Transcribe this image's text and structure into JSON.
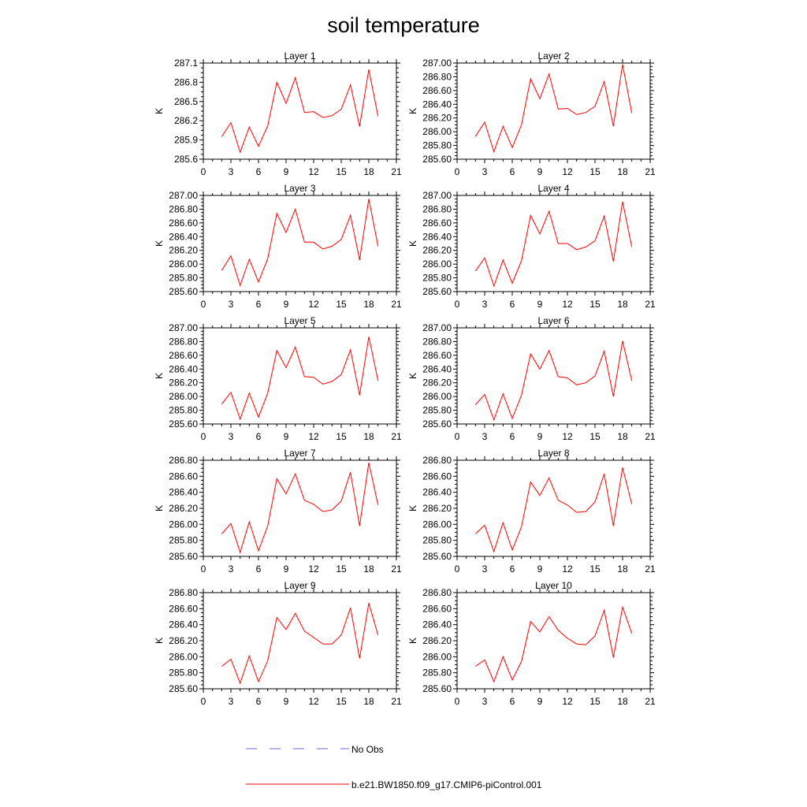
{
  "figure": {
    "title": "soil temperature",
    "legend": [
      {
        "label": "No Obs",
        "color": "#6b6bd6",
        "style": "dashed"
      },
      {
        "label": "b.e21.BW1850.f09_g17.CMIP6-piControl.001",
        "color": "#ff0000",
        "style": "solid"
      }
    ],
    "series_color": "#ff0000"
  },
  "chart_data": [
    {
      "type": "line",
      "title": "Layer 1",
      "ylabel": "K",
      "xlim": [
        0,
        21
      ],
      "ylim": [
        285.6,
        287.1
      ],
      "xticks": [
        "0",
        "3",
        "6",
        "9",
        "12",
        "15",
        "18",
        "21"
      ],
      "yticks": [
        "285.6",
        "285.9",
        "286.2",
        "286.5",
        "286.8",
        "287.1"
      ],
      "series": [
        {
          "name": "b.e21.BW1850.f09_g17.CMIP6-piControl.001",
          "x": [
            2,
            3,
            4,
            5,
            6,
            7,
            8,
            9,
            10,
            11,
            12,
            13,
            14,
            15,
            16,
            17,
            18,
            19
          ],
          "y": [
            285.95,
            286.17,
            285.71,
            286.1,
            285.8,
            286.12,
            286.8,
            286.47,
            286.87,
            286.33,
            286.34,
            286.25,
            286.28,
            286.38,
            286.76,
            286.11,
            287.0,
            286.27
          ]
        }
      ]
    },
    {
      "type": "line",
      "title": "Layer 2",
      "ylabel": "K",
      "xlim": [
        0,
        21
      ],
      "ylim": [
        285.6,
        287.0
      ],
      "xticks": [
        "0",
        "3",
        "6",
        "9",
        "12",
        "15",
        "18",
        "21"
      ],
      "yticks": [
        "285.60",
        "285.80",
        "286.00",
        "286.20",
        "286.40",
        "286.60",
        "286.80",
        "287.00"
      ],
      "series": [
        {
          "name": "b.e21.BW1850.f09_g17.CMIP6-piControl.001",
          "x": [
            2,
            3,
            4,
            5,
            6,
            7,
            8,
            9,
            10,
            11,
            12,
            13,
            14,
            15,
            16,
            17,
            18,
            19
          ],
          "y": [
            285.93,
            286.14,
            285.71,
            286.08,
            285.77,
            286.1,
            286.77,
            286.48,
            286.84,
            286.33,
            286.34,
            286.25,
            286.28,
            286.37,
            286.73,
            286.08,
            286.98,
            286.27
          ]
        }
      ]
    },
    {
      "type": "line",
      "title": "Layer 3",
      "ylabel": "K",
      "xlim": [
        0,
        21
      ],
      "ylim": [
        285.6,
        287.0
      ],
      "xticks": [
        "0",
        "3",
        "6",
        "9",
        "12",
        "15",
        "18",
        "21"
      ],
      "yticks": [
        "285.60",
        "285.80",
        "286.00",
        "286.20",
        "286.40",
        "286.60",
        "286.80",
        "287.00"
      ],
      "series": [
        {
          "name": "b.e21.BW1850.f09_g17.CMIP6-piControl.001",
          "x": [
            2,
            3,
            4,
            5,
            6,
            7,
            8,
            9,
            10,
            11,
            12,
            13,
            14,
            15,
            16,
            17,
            18,
            19
          ],
          "y": [
            285.91,
            286.12,
            285.69,
            286.07,
            285.74,
            286.08,
            286.74,
            286.46,
            286.8,
            286.32,
            286.32,
            286.22,
            286.26,
            286.36,
            286.71,
            286.06,
            286.95,
            286.26
          ]
        }
      ]
    },
    {
      "type": "line",
      "title": "Layer 4",
      "ylabel": "K",
      "xlim": [
        0,
        21
      ],
      "ylim": [
        285.6,
        287.0
      ],
      "xticks": [
        "0",
        "3",
        "6",
        "9",
        "12",
        "15",
        "18",
        "21"
      ],
      "yticks": [
        "285.60",
        "285.80",
        "286.00",
        "286.20",
        "286.40",
        "286.60",
        "286.80",
        "287.00"
      ],
      "series": [
        {
          "name": "b.e21.BW1850.f09_g17.CMIP6-piControl.001",
          "x": [
            2,
            3,
            4,
            5,
            6,
            7,
            8,
            9,
            10,
            11,
            12,
            13,
            14,
            15,
            16,
            17,
            18,
            19
          ],
          "y": [
            285.9,
            286.09,
            285.68,
            286.06,
            285.72,
            286.05,
            286.71,
            286.44,
            286.77,
            286.3,
            286.3,
            286.21,
            286.25,
            286.34,
            286.7,
            286.04,
            286.91,
            286.25
          ]
        }
      ]
    },
    {
      "type": "line",
      "title": "Layer 5",
      "ylabel": "K",
      "xlim": [
        0,
        21
      ],
      "ylim": [
        285.6,
        287.0
      ],
      "xticks": [
        "0",
        "3",
        "6",
        "9",
        "12",
        "15",
        "18",
        "21"
      ],
      "yticks": [
        "285.60",
        "285.80",
        "286.00",
        "286.20",
        "286.40",
        "286.60",
        "286.80",
        "287.00"
      ],
      "series": [
        {
          "name": "b.e21.BW1850.f09_g17.CMIP6-piControl.001",
          "x": [
            2,
            3,
            4,
            5,
            6,
            7,
            8,
            9,
            10,
            11,
            12,
            13,
            14,
            15,
            16,
            17,
            18,
            19
          ],
          "y": [
            285.89,
            286.06,
            285.67,
            286.05,
            285.7,
            286.05,
            286.67,
            286.42,
            286.72,
            286.29,
            286.28,
            286.18,
            286.22,
            286.32,
            286.68,
            286.02,
            286.87,
            286.23
          ]
        }
      ]
    },
    {
      "type": "line",
      "title": "Layer 6",
      "ylabel": "K",
      "xlim": [
        0,
        21
      ],
      "ylim": [
        285.6,
        287.0
      ],
      "xticks": [
        "0",
        "3",
        "6",
        "9",
        "12",
        "15",
        "18",
        "21"
      ],
      "yticks": [
        "285.60",
        "285.80",
        "286.00",
        "286.20",
        "286.40",
        "286.60",
        "286.80",
        "287.00"
      ],
      "series": [
        {
          "name": "b.e21.BW1850.f09_g17.CMIP6-piControl.001",
          "x": [
            2,
            3,
            4,
            5,
            6,
            7,
            8,
            9,
            10,
            11,
            12,
            13,
            14,
            15,
            16,
            17,
            18,
            19
          ],
          "y": [
            285.88,
            286.03,
            285.66,
            286.04,
            285.68,
            286.02,
            286.62,
            286.4,
            286.67,
            286.29,
            286.27,
            286.17,
            286.2,
            286.3,
            286.66,
            286.0,
            286.81,
            286.23
          ]
        }
      ]
    },
    {
      "type": "line",
      "title": "Layer 7",
      "ylabel": "K",
      "xlim": [
        0,
        21
      ],
      "ylim": [
        285.6,
        286.8
      ],
      "xticks": [
        "0",
        "3",
        "6",
        "9",
        "12",
        "15",
        "18",
        "21"
      ],
      "yticks": [
        "285.60",
        "285.80",
        "286.00",
        "286.20",
        "286.40",
        "286.60",
        "286.80"
      ],
      "series": [
        {
          "name": "b.e21.BW1850.f09_g17.CMIP6-piControl.001",
          "x": [
            2,
            3,
            4,
            5,
            6,
            7,
            8,
            9,
            10,
            11,
            12,
            13,
            14,
            15,
            16,
            17,
            18,
            19
          ],
          "y": [
            285.88,
            286.01,
            285.65,
            286.03,
            285.67,
            285.98,
            286.57,
            286.38,
            286.63,
            286.3,
            286.25,
            286.16,
            286.18,
            286.29,
            286.65,
            285.98,
            286.77,
            286.24
          ]
        }
      ]
    },
    {
      "type": "line",
      "title": "Layer 8",
      "ylabel": "K",
      "xlim": [
        0,
        21
      ],
      "ylim": [
        285.6,
        286.8
      ],
      "xticks": [
        "0",
        "3",
        "6",
        "9",
        "12",
        "15",
        "18",
        "21"
      ],
      "yticks": [
        "285.60",
        "285.80",
        "286.00",
        "286.20",
        "286.40",
        "286.60",
        "286.80"
      ],
      "series": [
        {
          "name": "b.e21.BW1850.f09_g17.CMIP6-piControl.001",
          "x": [
            2,
            3,
            4,
            5,
            6,
            7,
            8,
            9,
            10,
            11,
            12,
            13,
            14,
            15,
            16,
            17,
            18,
            19
          ],
          "y": [
            285.88,
            285.99,
            285.66,
            286.02,
            285.68,
            285.97,
            286.53,
            286.36,
            286.58,
            286.3,
            286.24,
            286.15,
            286.16,
            286.28,
            286.63,
            285.98,
            286.71,
            286.25
          ]
        }
      ]
    },
    {
      "type": "line",
      "title": "Layer 9",
      "ylabel": "K",
      "xlim": [
        0,
        21
      ],
      "ylim": [
        285.6,
        286.8
      ],
      "xticks": [
        "0",
        "3",
        "6",
        "9",
        "12",
        "15",
        "18",
        "21"
      ],
      "yticks": [
        "285.60",
        "285.80",
        "286.00",
        "286.20",
        "286.40",
        "286.60",
        "286.80"
      ],
      "series": [
        {
          "name": "b.e21.BW1850.f09_g17.CMIP6-piControl.001",
          "x": [
            2,
            3,
            4,
            5,
            6,
            7,
            8,
            9,
            10,
            11,
            12,
            13,
            14,
            15,
            16,
            17,
            18,
            19
          ],
          "y": [
            285.88,
            285.97,
            285.67,
            286.01,
            285.69,
            285.95,
            286.49,
            286.34,
            286.54,
            286.32,
            286.24,
            286.16,
            286.16,
            286.27,
            286.61,
            285.98,
            286.67,
            286.27
          ]
        }
      ]
    },
    {
      "type": "line",
      "title": "Layer 10",
      "ylabel": "K",
      "xlim": [
        0,
        21
      ],
      "ylim": [
        285.6,
        286.8
      ],
      "xticks": [
        "0",
        "3",
        "6",
        "9",
        "12",
        "15",
        "18",
        "21"
      ],
      "yticks": [
        "285.60",
        "285.80",
        "286.00",
        "286.20",
        "286.40",
        "286.60",
        "286.80"
      ],
      "series": [
        {
          "name": "b.e21.BW1850.f09_g17.CMIP6-piControl.001",
          "x": [
            2,
            3,
            4,
            5,
            6,
            7,
            8,
            9,
            10,
            11,
            12,
            13,
            14,
            15,
            16,
            17,
            18,
            19
          ],
          "y": [
            285.88,
            285.96,
            285.69,
            286.0,
            285.71,
            285.94,
            286.44,
            286.31,
            286.5,
            286.33,
            286.23,
            286.16,
            286.15,
            286.26,
            286.58,
            285.99,
            286.62,
            286.29
          ]
        }
      ]
    }
  ]
}
